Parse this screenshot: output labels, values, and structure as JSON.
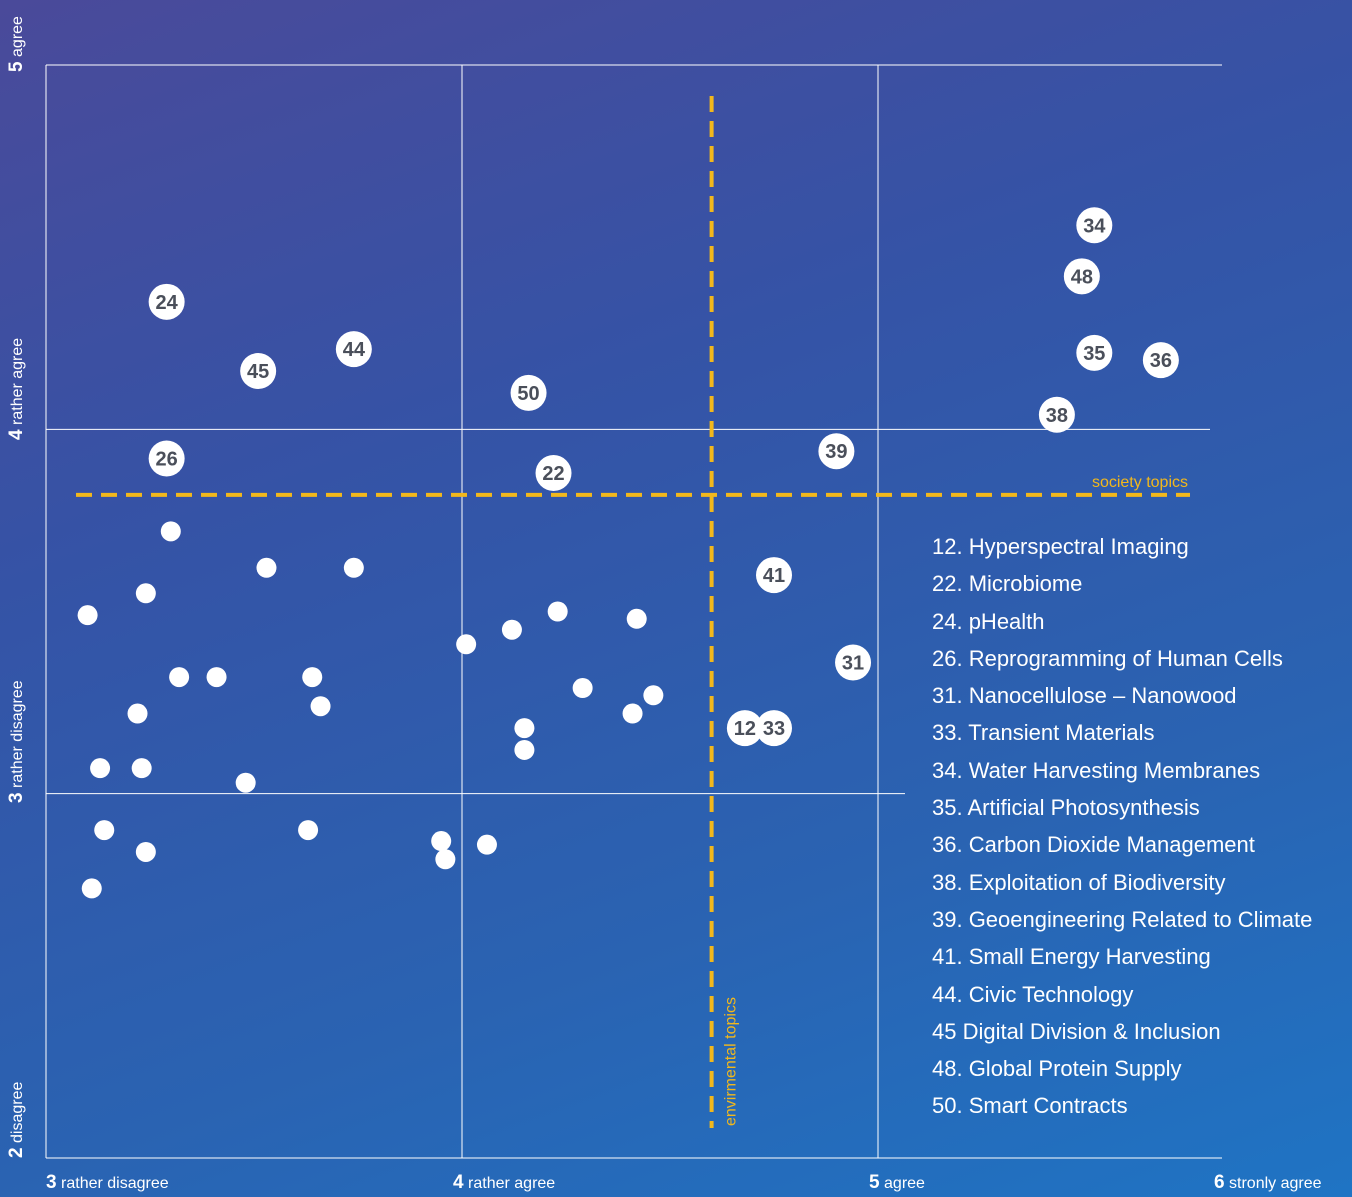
{
  "chart_data": {
    "type": "scatter",
    "xlim": [
      3,
      6
    ],
    "ylim": [
      2,
      5
    ],
    "x_ticks": [
      {
        "value": 3,
        "num": "3",
        "label": "rather disagree"
      },
      {
        "value": 4,
        "num": "4",
        "label": "rather agree"
      },
      {
        "value": 5,
        "num": "5",
        "label": "agree"
      },
      {
        "value": 6,
        "num": "6",
        "label": "stronly agree"
      }
    ],
    "y_ticks": [
      {
        "value": 2,
        "num": "2",
        "label": "disagree"
      },
      {
        "value": 3,
        "num": "3",
        "label": "rather disagree"
      },
      {
        "value": 4,
        "num": "4",
        "label": "rather agree"
      },
      {
        "value": 5,
        "num": "5",
        "label": "agree"
      }
    ],
    "threshold_lines": [
      {
        "orientation": "horizontal",
        "value": 3.82,
        "label": "society topics"
      },
      {
        "orientation": "vertical",
        "value": 4.6,
        "label": "envirmental topics"
      }
    ],
    "labeled_points": [
      {
        "id": "12",
        "x": 4.68,
        "y": 3.18
      },
      {
        "id": "22",
        "x": 4.22,
        "y": 3.88
      },
      {
        "id": "24",
        "x": 3.29,
        "y": 4.35
      },
      {
        "id": "26",
        "x": 3.29,
        "y": 3.92
      },
      {
        "id": "31",
        "x": 4.94,
        "y": 3.36
      },
      {
        "id": "33",
        "x": 4.75,
        "y": 3.18
      },
      {
        "id": "34",
        "x": 5.52,
        "y": 4.56
      },
      {
        "id": "35",
        "x": 5.52,
        "y": 4.21
      },
      {
        "id": "36",
        "x": 5.68,
        "y": 4.19
      },
      {
        "id": "38",
        "x": 5.43,
        "y": 4.04
      },
      {
        "id": "39",
        "x": 4.9,
        "y": 3.94
      },
      {
        "id": "41",
        "x": 4.75,
        "y": 3.6
      },
      {
        "id": "44",
        "x": 3.74,
        "y": 4.22
      },
      {
        "id": "45",
        "x": 3.51,
        "y": 4.16
      },
      {
        "id": "48",
        "x": 5.49,
        "y": 4.42
      },
      {
        "id": "50",
        "x": 4.16,
        "y": 4.1
      }
    ],
    "unlabeled_points": [
      [
        3.3,
        3.72
      ],
      [
        3.24,
        3.55
      ],
      [
        3.53,
        3.62
      ],
      [
        3.74,
        3.62
      ],
      [
        3.1,
        3.49
      ],
      [
        3.32,
        3.32
      ],
      [
        3.41,
        3.32
      ],
      [
        3.64,
        3.32
      ],
      [
        3.22,
        3.22
      ],
      [
        3.66,
        3.24
      ],
      [
        3.13,
        3.07
      ],
      [
        3.23,
        3.07
      ],
      [
        3.48,
        3.03
      ],
      [
        3.14,
        2.9
      ],
      [
        3.24,
        2.84
      ],
      [
        3.63,
        2.9
      ],
      [
        3.11,
        2.74
      ],
      [
        4.01,
        3.41
      ],
      [
        4.12,
        3.45
      ],
      [
        4.23,
        3.5
      ],
      [
        4.42,
        3.48
      ],
      [
        4.29,
        3.29
      ],
      [
        4.46,
        3.27
      ],
      [
        4.41,
        3.22
      ],
      [
        4.15,
        3.18
      ],
      [
        4.15,
        3.12
      ],
      [
        3.95,
        2.87
      ],
      [
        3.96,
        2.82
      ],
      [
        4.06,
        2.86
      ]
    ],
    "legend": [
      "12. Hyperspectral Imaging",
      "22. Microbiome",
      "24. pHealth",
      "26. Reprogramming of Human Cells",
      "31. Nanocellulose – Nanowood",
      "33. Transient Materials",
      "34. Water Harvesting Membranes",
      "35. Artificial Photosynthesis",
      "36. Carbon Dioxide Management",
      "38. Exploitation of Biodiversity",
      "39. Geoengineering Related to Climate",
      "41. Small Energy Harvesting",
      "44. Civic Technology",
      "45  Digital Division & Inclusion",
      "48. Global Protein Supply",
      "50. Smart Contracts"
    ],
    "legend_position": "right",
    "grid": true
  },
  "colors": {
    "grid": "#ffffff",
    "threshold": "#f2b81c",
    "marker_fill": "#ffffff",
    "marker_text": "#4a4f5a"
  }
}
